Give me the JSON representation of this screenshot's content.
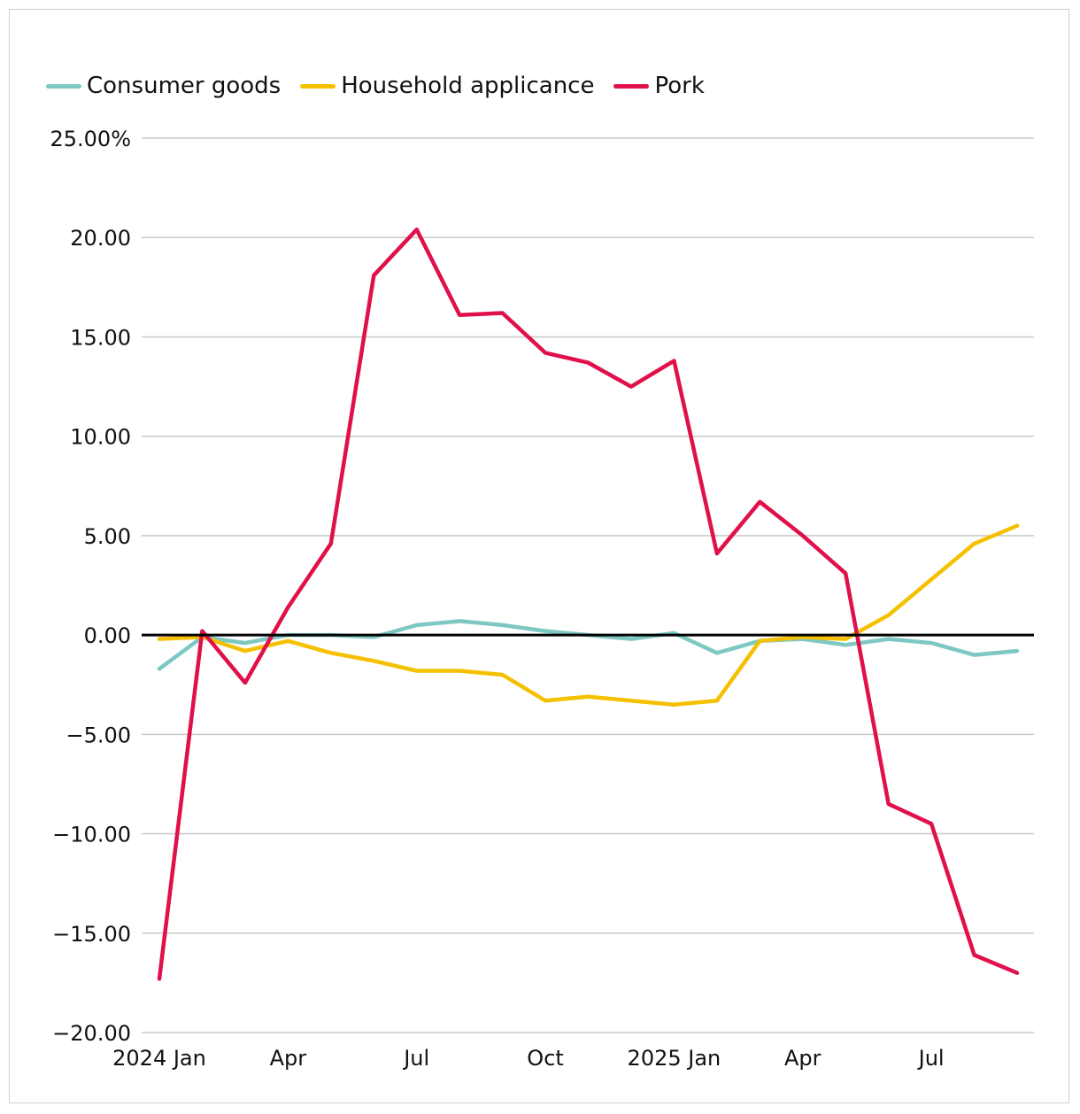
{
  "chart_data": {
    "type": "line",
    "title": "",
    "xlabel": "",
    "ylabel": "",
    "ylim": [
      -20,
      25
    ],
    "y_ticks": [
      {
        "value": 25,
        "label": "25.00%"
      },
      {
        "value": 20,
        "label": "20.00"
      },
      {
        "value": 15,
        "label": "15.00"
      },
      {
        "value": 10,
        "label": "10.00"
      },
      {
        "value": 5,
        "label": "5.00"
      },
      {
        "value": 0,
        "label": "0.00"
      },
      {
        "value": -5,
        "label": "−5.00"
      },
      {
        "value": -10,
        "label": "−10.00"
      },
      {
        "value": -15,
        "label": "−15.00"
      },
      {
        "value": -20,
        "label": "−20.00"
      }
    ],
    "x_ticks": [
      {
        "index": 0,
        "label": "2024 Jan"
      },
      {
        "index": 3,
        "label": "Apr"
      },
      {
        "index": 6,
        "label": "Jul"
      },
      {
        "index": 9,
        "label": "Oct"
      },
      {
        "index": 12,
        "label": "2025 Jan"
      },
      {
        "index": 15,
        "label": "Apr"
      },
      {
        "index": 18,
        "label": "Jul"
      }
    ],
    "categories": [
      "2024-01",
      "2024-02",
      "2024-03",
      "2024-04",
      "2024-05",
      "2024-06",
      "2024-07",
      "2024-08",
      "2024-09",
      "2024-10",
      "2024-11",
      "2024-12",
      "2025-01",
      "2025-02",
      "2025-03",
      "2025-04",
      "2025-05",
      "2025-06",
      "2025-07",
      "2025-08",
      "2025-09"
    ],
    "series": [
      {
        "name": "Consumer goods",
        "color": "#7ec8c3",
        "values": [
          -1.7,
          -0.1,
          -0.4,
          0.0,
          0.0,
          -0.1,
          0.5,
          0.7,
          0.5,
          0.2,
          0.0,
          -0.2,
          0.1,
          -0.9,
          -0.3,
          -0.2,
          -0.5,
          -0.2,
          -0.4,
          -1.0,
          -0.8
        ]
      },
      {
        "name": "Household applicance",
        "color": "#f5c000",
        "values": [
          -0.2,
          -0.1,
          -0.8,
          -0.3,
          -0.9,
          -1.3,
          -1.8,
          -1.8,
          -2.0,
          -3.3,
          -3.1,
          -3.3,
          -3.5,
          -3.3,
          -0.3,
          -0.1,
          -0.2,
          1.0,
          2.8,
          4.6,
          5.5
        ]
      },
      {
        "name": "Pork",
        "color": "#e0104a",
        "values": [
          -17.3,
          0.2,
          -2.4,
          1.4,
          4.6,
          18.1,
          20.4,
          16.1,
          16.2,
          14.2,
          13.7,
          12.5,
          13.8,
          4.1,
          6.7,
          5.0,
          3.1,
          -8.5,
          -9.5,
          -16.1,
          -17.0
        ]
      }
    ],
    "legend_position": "top-left",
    "grid": true
  }
}
